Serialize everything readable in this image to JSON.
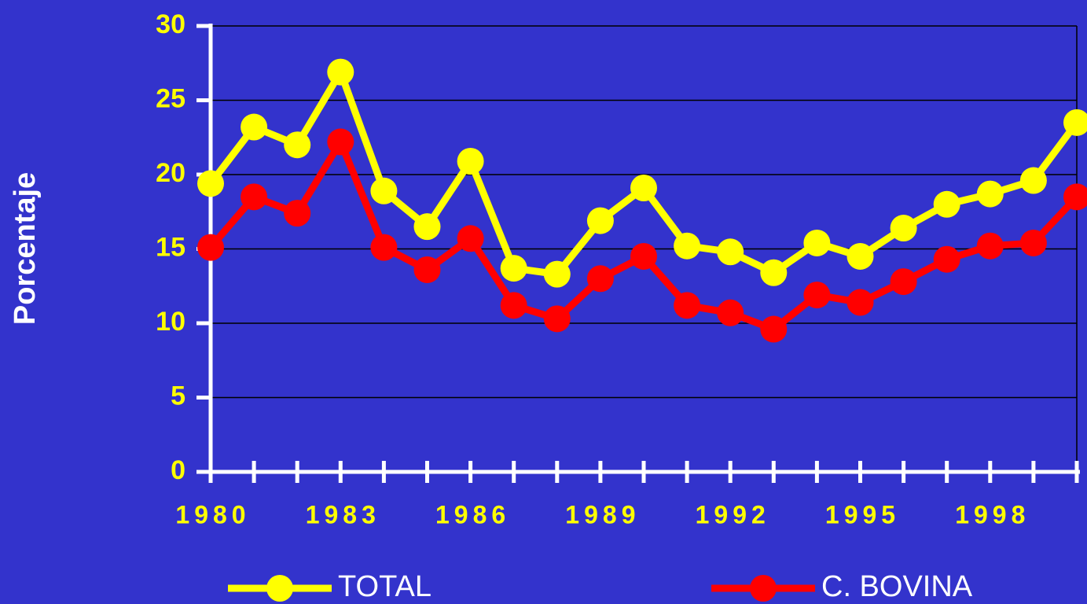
{
  "chart_data": {
    "type": "line",
    "y_label": "Porcentaje",
    "categories": [
      "1980",
      null,
      null,
      "1983",
      null,
      null,
      "1986",
      null,
      null,
      "1989",
      null,
      null,
      "1992",
      null,
      null,
      "1995",
      null,
      null,
      "1998",
      null,
      null
    ],
    "series": [
      {
        "name": "TOTAL",
        "color": "#ffff00",
        "values": [
          19.4,
          23.2,
          22.0,
          26.9,
          18.9,
          16.5,
          20.9,
          13.7,
          13.3,
          16.9,
          19.1,
          15.2,
          14.8,
          13.4,
          15.4,
          14.5,
          16.4,
          18.0,
          18.7,
          19.6,
          23.5
        ]
      },
      {
        "name": "C. BOVINA",
        "color": "#ff0000",
        "values": [
          15.1,
          18.5,
          17.4,
          22.2,
          15.1,
          13.6,
          15.7,
          11.2,
          10.3,
          13.0,
          14.5,
          11.2,
          10.7,
          9.6,
          11.9,
          11.4,
          12.8,
          14.3,
          15.2,
          15.4,
          18.5
        ]
      }
    ],
    "ylim": [
      0,
      30
    ],
    "yticks": [
      0,
      5,
      10,
      15,
      20,
      25,
      30
    ],
    "grid": true
  }
}
